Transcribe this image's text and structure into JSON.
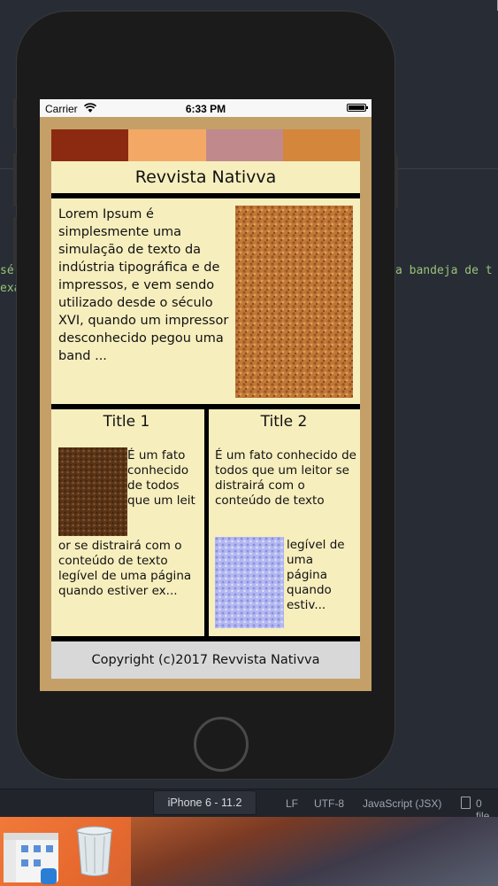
{
  "editor": {
    "code_left_1": "sé",
    "code_left_2": "exa",
    "code_right_1": "a bandeja de t"
  },
  "phone": {
    "status_bar": {
      "carrier": "Carrier",
      "time": "6:33 PM",
      "wifi_icon": "wifi-icon",
      "battery_icon": "battery-icon"
    },
    "app": {
      "colors": [
        "#8b2a10",
        "#f4a866",
        "#c08a8c",
        "#d4873a"
      ],
      "title": "Revvista Nativva",
      "intro_text": "Lorem Ipsum é simplesmente uma simulação de texto da indústria tipográfica e de impressos, e vem sendo utilizado desde o século XVI, quando um impressor desconhecido pegou uma band ...",
      "col1": {
        "title": "Title 1",
        "text_beside_image": "É um fato conhecido de todos que um leit",
        "text_below_image": "or se distrairá  com o conteúdo de texto legível de uma página quando estiver ex..."
      },
      "col2": {
        "title": "Title 2",
        "text_top": "É um fato conhecido de todos que um leitor se distrairá  com o conteúdo de texto",
        "text_beside_image": "legível de uma página quando estiv..."
      },
      "footer": "Copyright (c)2017 Revvista Nativva"
    }
  },
  "ide_status": {
    "device": "iPhone 6 - 11.2",
    "line_ending": "LF",
    "encoding": "UTF-8",
    "grammar": "JavaScript (JSX)",
    "files": "0 file"
  },
  "dock": {
    "apps": [
      "finder-icon",
      "trash-icon"
    ]
  }
}
